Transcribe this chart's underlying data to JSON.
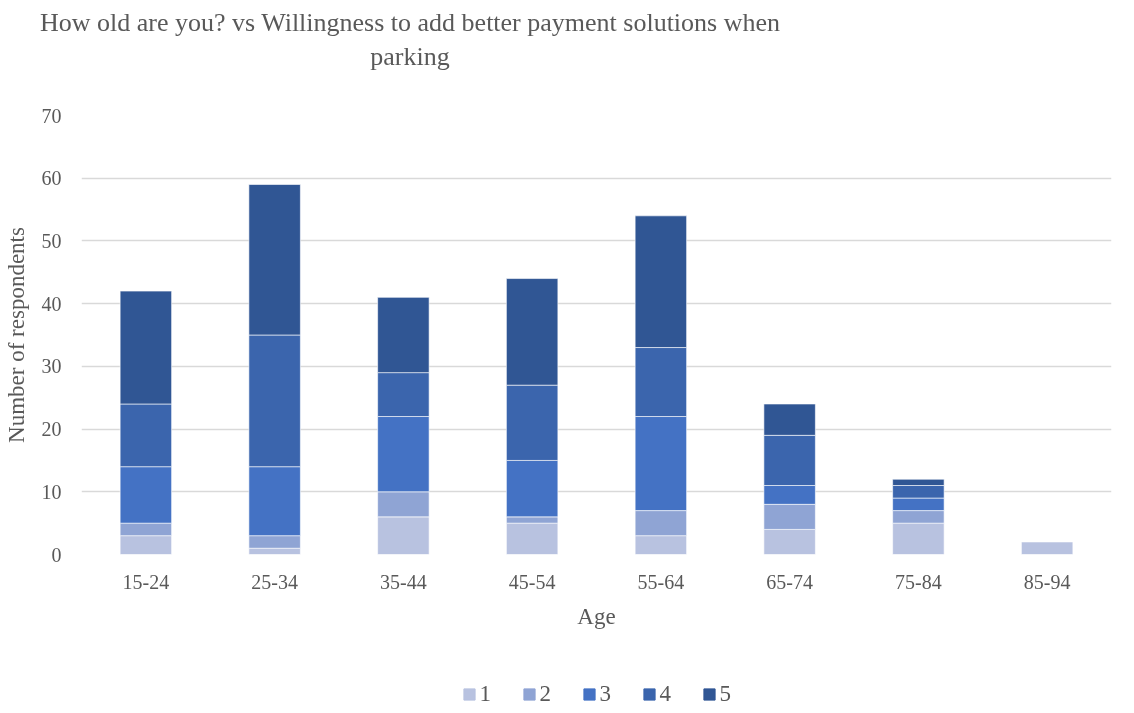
{
  "chart_data": {
    "type": "bar",
    "title": "How old are you? vs Willingness to add better payment solutions when parking",
    "xlabel": "Age",
    "ylabel": "Number of respondents",
    "categories": [
      "15-24",
      "25-34",
      "35-44",
      "45-54",
      "55-64",
      "65-74",
      "75-84",
      "85-94"
    ],
    "series": [
      {
        "name": "1",
        "color": "#b8c2e0",
        "values": [
          3,
          1,
          6,
          5,
          3,
          4,
          5,
          2
        ]
      },
      {
        "name": "2",
        "color": "#8fa4d4",
        "values": [
          2,
          2,
          4,
          1,
          4,
          4,
          2,
          0
        ]
      },
      {
        "name": "3",
        "color": "#4472c4",
        "values": [
          9,
          11,
          12,
          9,
          15,
          3,
          2,
          0
        ]
      },
      {
        "name": "4",
        "color": "#3b65ad",
        "values": [
          10,
          21,
          7,
          12,
          11,
          8,
          2,
          0
        ]
      },
      {
        "name": "5",
        "color": "#305694",
        "values": [
          18,
          24,
          12,
          17,
          21,
          5,
          1,
          0
        ]
      }
    ],
    "stacked": true,
    "ylim": [
      0,
      70
    ],
    "yticks": [
      0,
      10,
      20,
      30,
      40,
      50,
      60,
      70
    ],
    "grid": "y",
    "legend": "bottom"
  }
}
